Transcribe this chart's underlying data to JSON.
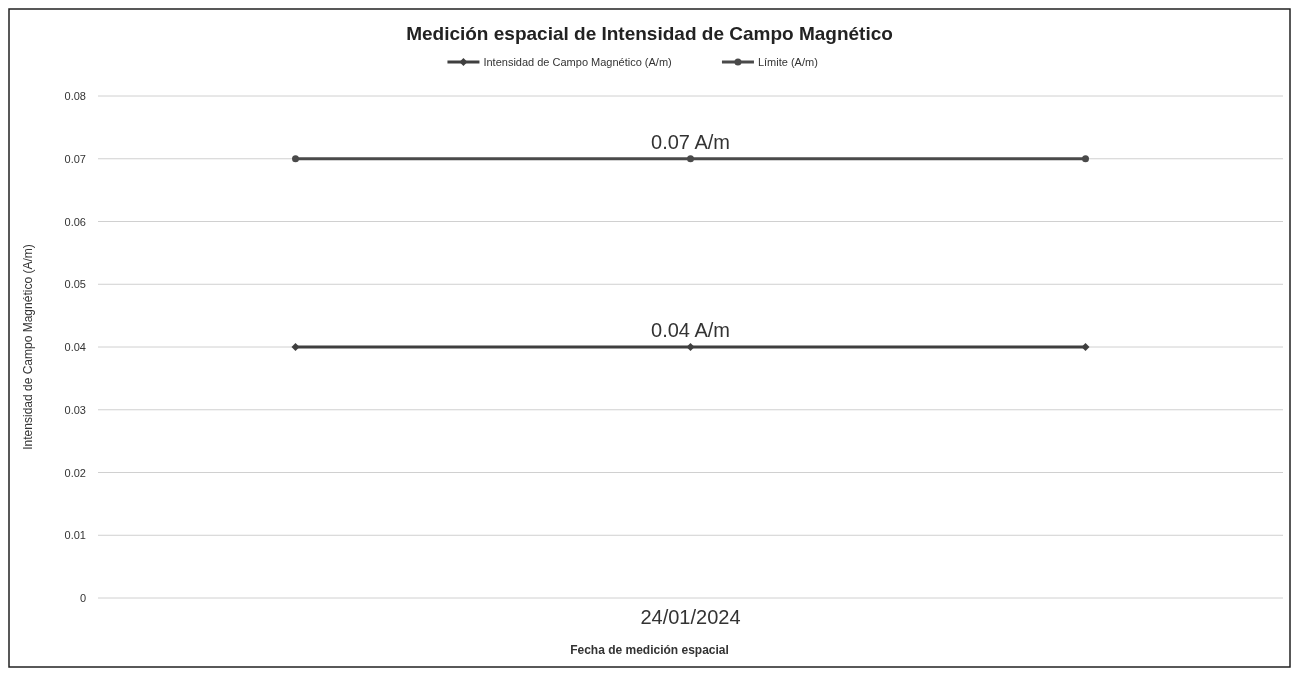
{
  "chart_data": {
    "type": "line",
    "title": "Medición espacial de Intensidad de Campo Magnético",
    "xlabel": "Fecha de medición espacial",
    "ylabel": "Intensidad de Campo Magnético (A/m)",
    "categories": [
      null,
      "24/01/2024",
      null
    ],
    "series": [
      {
        "name": "Intensidad de Campo Magnético (A/m)",
        "color": "#3f3f3f",
        "marker": "diamond",
        "values": [
          0.04,
          0.04,
          0.04
        ],
        "value_labels": [
          null,
          "0.04 A/m",
          null
        ]
      },
      {
        "name": "Límite (A/m)",
        "color": "#4a4a4a",
        "marker": "circle",
        "values": [
          0.07,
          0.07,
          0.07
        ],
        "value_labels": [
          null,
          "0.07 A/m",
          null
        ]
      }
    ],
    "ylim": [
      0,
      0.08
    ],
    "yticks": [
      0,
      0.01,
      0.02,
      0.03,
      0.04,
      0.05,
      0.06,
      0.07,
      0.08
    ],
    "grid": "y",
    "legend": "top",
    "line_style": "solid"
  }
}
